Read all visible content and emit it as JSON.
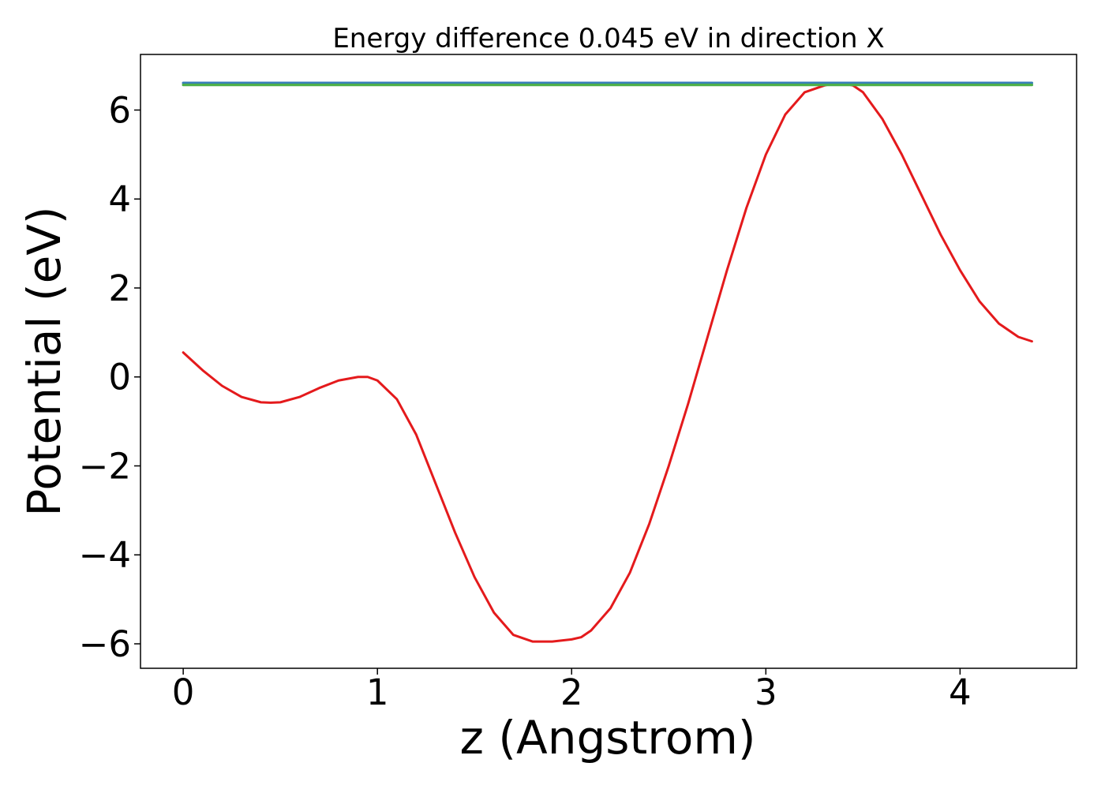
{
  "chart_data": {
    "type": "line",
    "title": "Energy difference 0.045 eV in direction X",
    "xlabel": "z (Angstrom)",
    "ylabel": "Potential (eV)",
    "xlim": [
      -0.22,
      4.6
    ],
    "ylim": [
      -6.55,
      7.25
    ],
    "xticks": [
      0,
      1,
      2,
      3,
      4
    ],
    "yticks": [
      -6,
      -4,
      -2,
      0,
      2,
      4,
      6
    ],
    "xtick_labels": [
      "0",
      "1",
      "2",
      "3",
      "4"
    ],
    "ytick_labels": [
      "−6",
      "−4",
      "−2",
      "0",
      "2",
      "4",
      "6"
    ],
    "grid": false,
    "legend": "none",
    "series": [
      {
        "color": "#e41a1c",
        "x": [
          0.0,
          0.1,
          0.2,
          0.3,
          0.4,
          0.45,
          0.5,
          0.6,
          0.7,
          0.8,
          0.9,
          0.95,
          1.0,
          1.1,
          1.2,
          1.3,
          1.4,
          1.5,
          1.6,
          1.7,
          1.8,
          1.9,
          2.0,
          2.05,
          2.1,
          2.2,
          2.3,
          2.4,
          2.5,
          2.6,
          2.7,
          2.8,
          2.9,
          3.0,
          3.1,
          3.2,
          3.3,
          3.35,
          3.4,
          3.45,
          3.5,
          3.6,
          3.7,
          3.8,
          3.9,
          4.0,
          4.1,
          4.2,
          4.3,
          4.37
        ],
        "y": [
          0.55,
          0.15,
          -0.2,
          -0.45,
          -0.57,
          -0.58,
          -0.57,
          -0.45,
          -0.25,
          -0.08,
          0.0,
          0.0,
          -0.08,
          -0.5,
          -1.3,
          -2.4,
          -3.5,
          -4.5,
          -5.3,
          -5.8,
          -5.95,
          -5.95,
          -5.9,
          -5.85,
          -5.7,
          -5.2,
          -4.4,
          -3.3,
          -2.0,
          -0.6,
          0.9,
          2.4,
          3.8,
          5.0,
          5.9,
          6.4,
          6.55,
          6.6,
          6.6,
          6.55,
          6.4,
          5.8,
          5.0,
          4.1,
          3.2,
          2.4,
          1.7,
          1.2,
          0.9,
          0.8
        ]
      },
      {
        "color": "#377eb8",
        "x": [
          0.0,
          4.37
        ],
        "y": [
          6.61,
          6.61
        ]
      },
      {
        "color": "#4daf4a",
        "x": [
          0.0,
          4.37
        ],
        "y": [
          6.565,
          6.565
        ]
      }
    ]
  }
}
